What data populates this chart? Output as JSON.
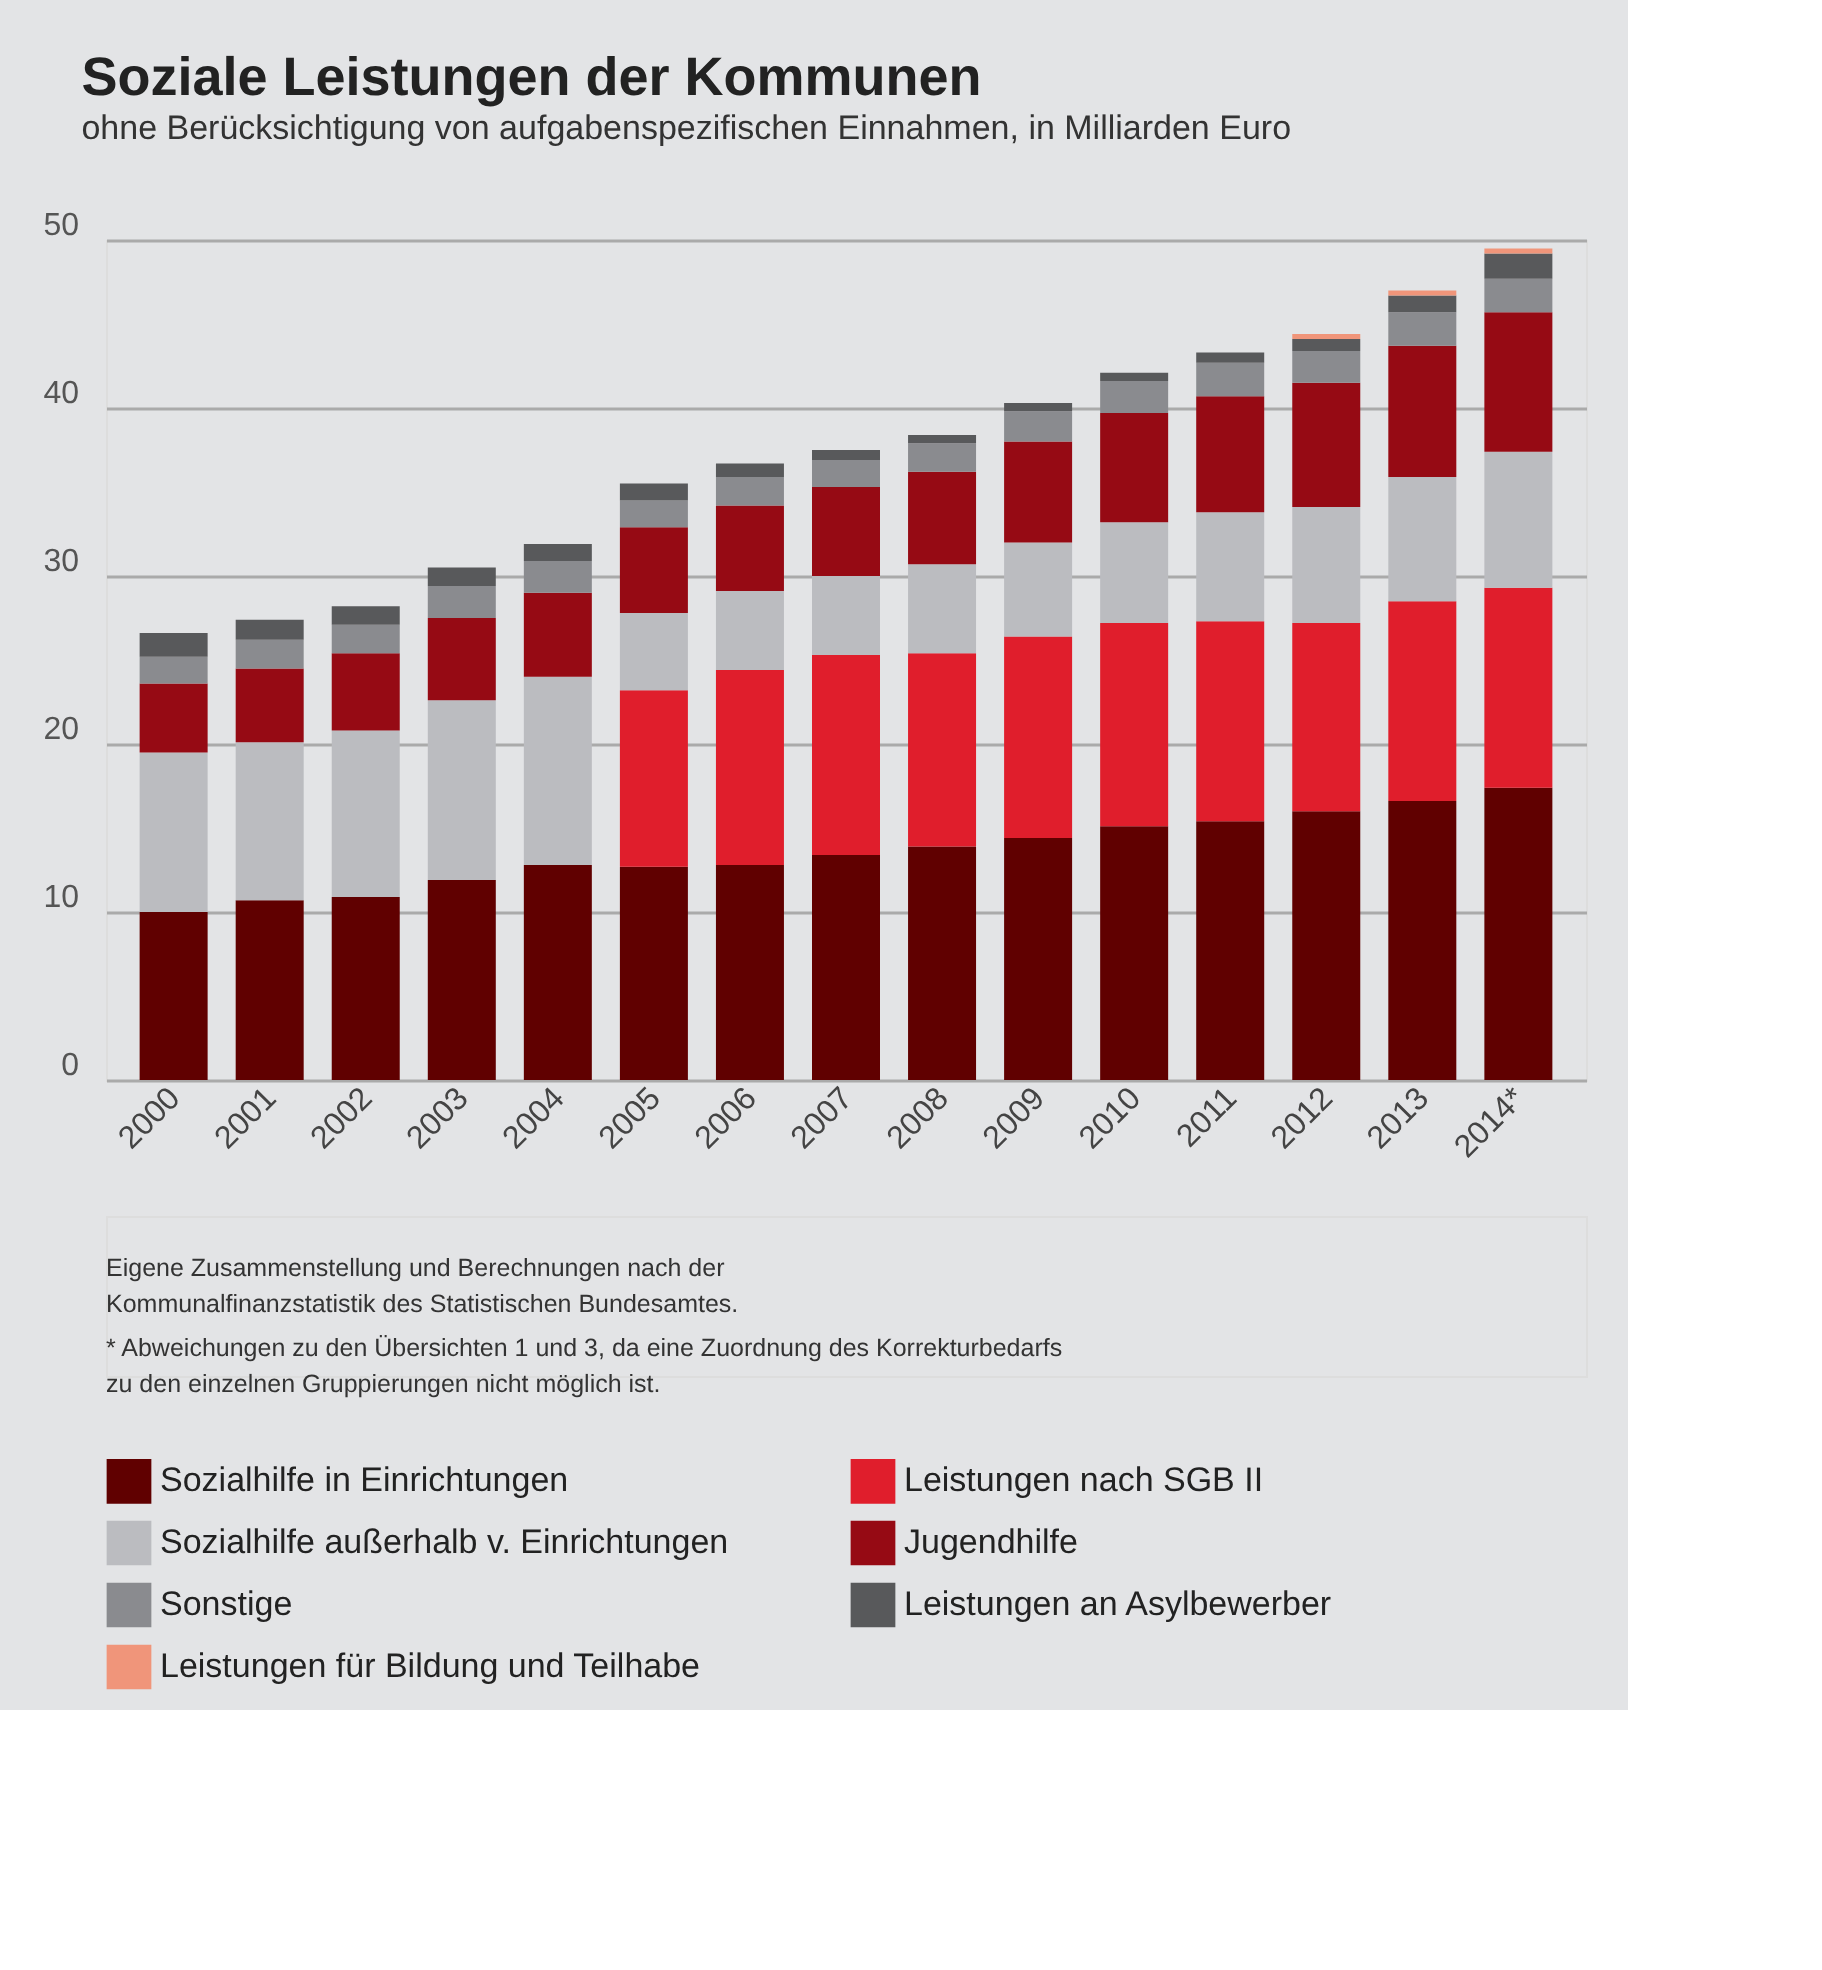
{
  "chart_data": {
    "type": "bar",
    "title": "Soziale Leistungen der Kommunen",
    "subtitle": "ohne Berücksichtigung von aufgabenspezifischen Einnahmen, in Milliarden Euro",
    "categories": [
      "2000",
      "2001",
      "2002",
      "2003",
      "2004",
      "2005",
      "2006",
      "2007",
      "2008",
      "2009",
      "2010",
      "2011",
      "2012",
      "2013",
      "2014*"
    ],
    "stacked": true,
    "ylim": [
      0,
      50
    ],
    "yticks": [
      0,
      10,
      20,
      30,
      40,
      50
    ],
    "grid": "y",
    "legend": "bottom",
    "series": [
      {
        "name": "Sozialhilfe in Einrichtungen",
        "color": "#600000",
        "values": [
          10.0,
          10.7,
          10.9,
          11.9,
          12.8,
          12.7,
          12.8,
          13.4,
          13.9,
          14.4,
          15.1,
          15.4,
          16.0,
          16.6,
          17.4
        ]
      },
      {
        "name": "Leistungen nach SGB II",
        "color": "#e01e2c",
        "values": [
          null,
          null,
          null,
          null,
          null,
          10.5,
          11.6,
          11.9,
          11.5,
          12.0,
          12.1,
          11.9,
          11.2,
          11.9,
          11.9
        ]
      },
      {
        "name": "Sozialhilfe außerhalb v. Einrichtungen",
        "color": "#bbbcc0",
        "values": [
          9.5,
          9.4,
          9.9,
          10.7,
          11.2,
          4.6,
          4.7,
          4.7,
          5.3,
          5.6,
          6.0,
          6.5,
          6.9,
          7.4,
          8.1
        ]
      },
      {
        "name": "Jugendhilfe",
        "color": "#960a14",
        "values": [
          4.1,
          4.4,
          4.6,
          4.9,
          5.0,
          5.1,
          5.1,
          5.3,
          5.5,
          6.0,
          6.5,
          6.9,
          7.4,
          7.8,
          8.3
        ]
      },
      {
        "name": "Sonstige",
        "color": "#8a8b8f",
        "values": [
          1.6,
          1.7,
          1.7,
          1.9,
          1.9,
          1.6,
          1.7,
          1.6,
          1.7,
          1.8,
          1.9,
          2.0,
          1.9,
          2.0,
          2.0
        ]
      },
      {
        "name": "Leistungen an Asylbewerber",
        "color": "#58595b",
        "values": [
          1.4,
          1.2,
          1.1,
          1.1,
          1.0,
          1.0,
          0.8,
          0.6,
          0.5,
          0.5,
          0.5,
          0.6,
          0.7,
          1.0,
          1.5
        ]
      },
      {
        "name": "Leistungen für Bildung und Teilhabe",
        "color": "#f0957a",
        "values": [
          null,
          null,
          null,
          null,
          null,
          null,
          null,
          null,
          null,
          null,
          null,
          null,
          0.3,
          0.3,
          0.3
        ]
      }
    ],
    "annotations": [
      "Eigene Zusammenstellung und Berechnungen nach der\nKommunalfinanzstatistik des Statistischen Bundesamtes.",
      "* Abweichungen zu den Übersichten 1 und 3, da eine Zuordnung des Korrekturbedarfs\nzu den einzelnen Gruppierungen nicht möglich ist."
    ]
  }
}
